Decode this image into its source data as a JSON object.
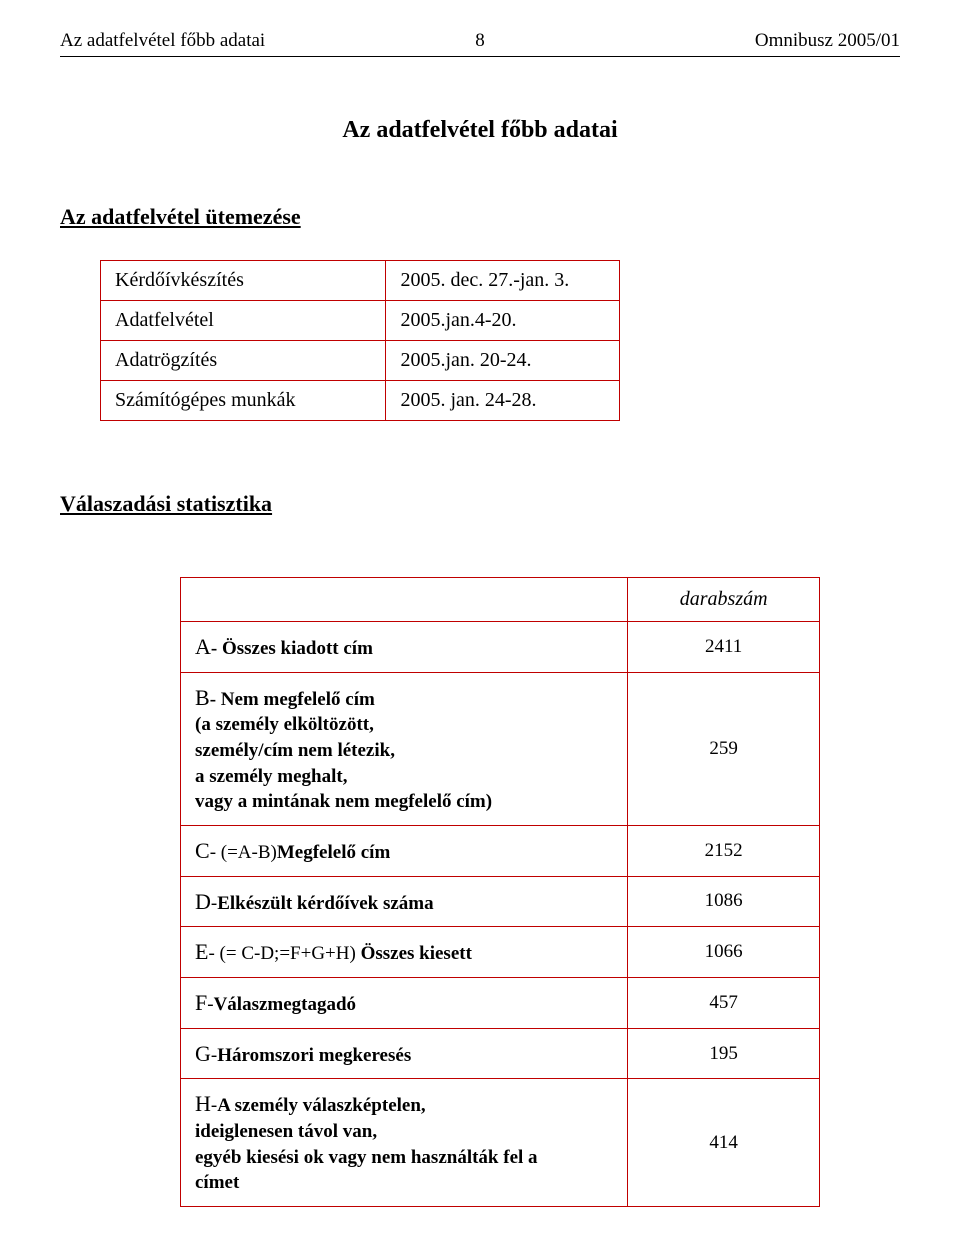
{
  "header": {
    "left": "Az adatfelvétel főbb adatai",
    "page_number": "8",
    "right": "Omnibusz 2005/01"
  },
  "title": "Az adatfelvétel főbb adatai",
  "section1_heading": "Az adatfelvétel ütemezése",
  "schedule_table": {
    "border_color": "#c00000",
    "rows": [
      {
        "label": "Kérdőívkészítés",
        "value": "2005. dec. 27.-jan. 3."
      },
      {
        "label": "Adatfelvétel",
        "value": "2005.jan.4-20."
      },
      {
        "label": "Adatrögzítés",
        "value": "2005.jan. 20-24."
      },
      {
        "label": "Számítógépes munkák",
        "value": "2005. jan. 24-28."
      }
    ]
  },
  "section2_heading": "Válaszadási statisztika",
  "stats_table": {
    "border_color": "#c00000",
    "header_value": "darabszám",
    "rows": [
      {
        "letter": "A",
        "label_bold": "- Összes kiadott cím",
        "sub": "",
        "value": "2411"
      },
      {
        "letter": "B",
        "label_bold": "- Nem megfelelő cím",
        "sub": "(a személy elköltözött,\n személy/cím nem létezik,\n a személy meghalt,\n vagy a mintának nem megfelelő cím)",
        "value": "259"
      },
      {
        "letter": "C",
        "prefix": "- (=A-B)",
        "label_bold": "Megfelelő cím",
        "sub": "",
        "value": "2152"
      },
      {
        "letter": "D",
        "prefix": "-",
        "label_bold": "Elkészült kérdőívek száma",
        "sub": "",
        "value": "1086"
      },
      {
        "letter": "E",
        "prefix": "- (= C-D;=F+G+H) ",
        "label_bold": "Összes kiesett",
        "sub": "",
        "value": "1066"
      },
      {
        "letter": "F",
        "prefix": "-",
        "label_bold": "Válaszmegtagadó",
        "sub": "",
        "value": "457"
      },
      {
        "letter": "G",
        "prefix": "-",
        "label_bold": "Háromszori megkeresés",
        "sub": "",
        "value": "195"
      },
      {
        "letter": "H",
        "prefix": "-",
        "label_bold": "A személy válaszképtelen,",
        "sub": " ideiglenesen távol van,\negyéb kiesési ok vagy nem használták fel a\ncímet",
        "value": "414"
      }
    ]
  }
}
